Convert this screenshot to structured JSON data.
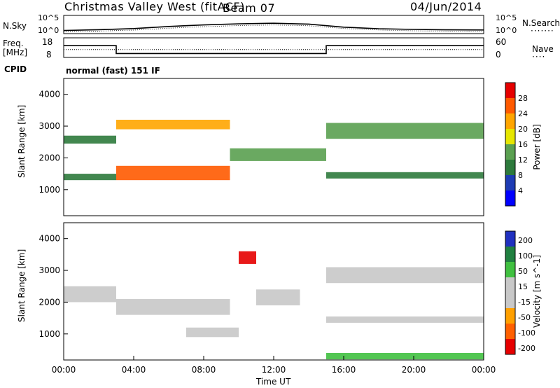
{
  "header": {
    "station": "Christmas Valley West (fitACF)",
    "beam": "Beam 07",
    "date": "04/Jun/2014"
  },
  "noise_panel": {
    "left_label": "N.Sky",
    "right_label": "N.Search",
    "left_ticks": [
      "10^5",
      "10^0"
    ],
    "right_ticks": [
      "10^5",
      "10^0"
    ]
  },
  "freq_panel": {
    "left_label_line1": "Freq.",
    "left_label_line2": "[MHz]",
    "left_ticks": [
      "18",
      "8"
    ],
    "right_label": "Nave",
    "right_ticks": [
      "60",
      "0"
    ]
  },
  "cpid": {
    "label": "CPID",
    "mode": "normal (fast) 151 IF"
  },
  "chart_data": [
    {
      "type": "line",
      "title": "N.Sky / N.Search",
      "x": [
        "00:00",
        "02:00",
        "04:00",
        "06:00",
        "08:00",
        "10:00",
        "12:00",
        "14:00",
        "16:00",
        "18:00",
        "20:00",
        "22:00",
        "24:00"
      ],
      "series": [
        {
          "name": "N.Sky",
          "values": [
            7,
            12,
            24,
            90,
            240,
            500,
            700,
            420,
            60,
            22,
            14,
            11,
            10
          ]
        },
        {
          "name": "N.Search",
          "values": [
            3,
            5,
            9,
            30,
            80,
            160,
            230,
            140,
            25,
            10,
            6,
            5,
            4
          ]
        }
      ],
      "yscale": "log",
      "ylim": [
        1,
        100000
      ]
    },
    {
      "type": "line",
      "title": "Freq. / Nave",
      "series": [
        {
          "name": "Freq. [MHz]",
          "x": [
            "00:00",
            "03:00",
            "03:00",
            "15:00",
            "15:00",
            "24:00"
          ],
          "values": [
            14,
            14,
            10,
            10,
            14,
            14
          ]
        },
        {
          "name": "Nave",
          "x": [
            "00:00",
            "24:00"
          ],
          "values": [
            24,
            24
          ]
        }
      ],
      "ylim": [
        8,
        18
      ],
      "ylim_right": [
        0,
        60
      ]
    },
    {
      "type": "heatmap",
      "quantity": "Power",
      "xlabel": "",
      "ylabel": "Slant Range [km]",
      "xlim": [
        "00:00",
        "24:00"
      ],
      "ylim": [
        180,
        4500
      ],
      "yticks": [
        1000,
        2000,
        3000,
        4000
      ],
      "colorbar_label": "Power [dB]",
      "colorbar_ticks": [
        4,
        8,
        12,
        16,
        20,
        24,
        28
      ],
      "colorbar_range": [
        0,
        30
      ],
      "colors": [
        "#0000ff",
        "#1e3cb4",
        "#2d7a3c",
        "#5aa050",
        "#e6e600",
        "#ffa500",
        "#ff5a00",
        "#e60000"
      ],
      "echo_bands": [
        {
          "t0": 0.0,
          "t1": 3.0,
          "r0": 2450,
          "r1": 2700,
          "value": 10
        },
        {
          "t0": 0.0,
          "t1": 3.0,
          "r0": 1300,
          "r1": 1500,
          "value": 8
        },
        {
          "t0": 3.0,
          "t1": 9.5,
          "r0": 1300,
          "r1": 1750,
          "value": 26
        },
        {
          "t0": 3.0,
          "t1": 9.5,
          "r0": 2900,
          "r1": 3200,
          "value": 20
        },
        {
          "t0": 9.5,
          "t1": 15.0,
          "r0": 1900,
          "r1": 2300,
          "value": 14
        },
        {
          "t0": 15.0,
          "t1": 24.0,
          "r0": 1350,
          "r1": 1550,
          "value": 8
        },
        {
          "t0": 15.0,
          "t1": 24.0,
          "r0": 2600,
          "r1": 3100,
          "value": 12
        }
      ]
    },
    {
      "type": "heatmap",
      "quantity": "Velocity",
      "xlabel": "Time UT",
      "ylabel": "Slant Range [km]",
      "xlim": [
        "00:00",
        "24:00"
      ],
      "ylim": [
        180,
        4500
      ],
      "yticks": [
        1000,
        2000,
        3000,
        4000
      ],
      "xticks": [
        "00:00",
        "04:00",
        "08:00",
        "12:00",
        "16:00",
        "20:00",
        "00:00"
      ],
      "colorbar_label": "Velocity [m s^-1]",
      "colorbar_ticks": [
        200,
        100,
        50,
        15,
        -15,
        -50,
        -100,
        -200
      ],
      "colorbar_range": [
        -250,
        250
      ],
      "colors": [
        "#2030c0",
        "#208040",
        "#40c040",
        "#c8c8c8",
        "#c8c8c8",
        "#ffa000",
        "#ff6000",
        "#e60000"
      ],
      "echo_bands": [
        {
          "t0": 0.0,
          "t1": 3.0,
          "r0": 2000,
          "r1": 2500,
          "value": 0
        },
        {
          "t0": 3.0,
          "t1": 9.5,
          "r0": 1600,
          "r1": 2100,
          "value": 0
        },
        {
          "t0": 7.0,
          "t1": 10.0,
          "r0": 900,
          "r1": 1200,
          "value": -60
        },
        {
          "t0": 10.0,
          "t1": 11.0,
          "r0": 3200,
          "r1": 3600,
          "value": -200
        },
        {
          "t0": 11.0,
          "t1": 13.5,
          "r0": 1900,
          "r1": 2400,
          "value": 60
        },
        {
          "t0": 15.0,
          "t1": 24.0,
          "r0": 1350,
          "r1": 1550,
          "value": 0
        },
        {
          "t0": 15.0,
          "t1": 24.0,
          "r0": 2600,
          "r1": 3100,
          "value": 0
        },
        {
          "t0": 15.0,
          "t1": 24.0,
          "r0": 200,
          "r1": 400,
          "value": 80
        }
      ]
    }
  ]
}
